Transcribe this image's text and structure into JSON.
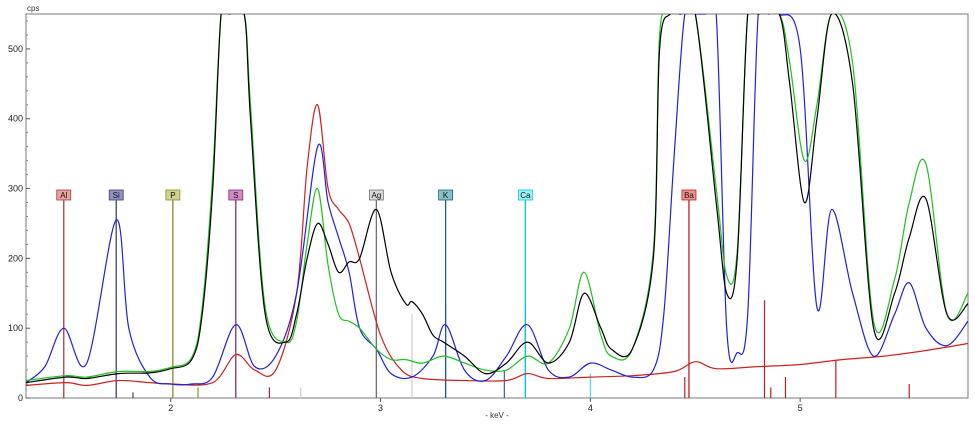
{
  "chart_data": {
    "type": "line",
    "xlabel": "- keV -",
    "ylabel": "cps",
    "xlim": [
      1.31,
      5.8
    ],
    "ylim": [
      0,
      550
    ],
    "x_ticks": [
      2,
      3,
      4,
      5
    ],
    "y_ticks": [
      0,
      100,
      200,
      300,
      400,
      500
    ],
    "grid": false,
    "legend": "none",
    "markers": [
      {
        "label": "Al",
        "x": 1.49,
        "color": "#a04040",
        "bg": "#e8a0a0"
      },
      {
        "label": "Si",
        "x": 1.74,
        "color": "#404070",
        "bg": "#9090c8"
      },
      {
        "label": "P",
        "x": 2.01,
        "color": "#8a8a30",
        "bg": "#d0d090"
      },
      {
        "label": "S",
        "x": 2.31,
        "color": "#803070",
        "bg": "#d08ac8"
      },
      {
        "label": "Ag",
        "x": 2.98,
        "color": "#707070",
        "bg": "#d8d8d8"
      },
      {
        "label": "K",
        "x": 3.31,
        "color": "#206080",
        "bg": "#88c0c8"
      },
      {
        "label": "Ca",
        "x": 3.69,
        "color": "#00c8d8",
        "bg": "#a0f0f8"
      },
      {
        "label": "Ba",
        "x": 4.47,
        "color": "#c02020",
        "bg": "#f09090"
      }
    ],
    "series": [
      {
        "color": "#000000",
        "x": [
          1.31,
          1.5,
          1.6,
          1.75,
          1.9,
          2.0,
          2.1,
          2.15,
          2.2,
          2.24,
          2.28,
          2.35,
          2.38,
          2.45,
          2.55,
          2.6,
          2.65,
          2.7,
          2.75,
          2.8,
          2.85,
          2.9,
          2.98,
          3.05,
          3.12,
          3.15,
          3.2,
          3.25,
          3.3,
          3.4,
          3.5,
          3.6,
          3.7,
          3.8,
          3.9,
          3.97,
          4.05,
          4.1,
          4.2,
          4.3,
          4.33,
          4.38,
          4.43,
          4.5,
          4.6,
          4.65,
          4.7,
          4.75,
          4.8,
          4.9,
          4.95,
          5.02,
          5.08,
          5.15,
          5.25,
          5.35,
          5.45,
          5.52,
          5.6,
          5.7,
          5.8
        ],
        "y": [
          22,
          30,
          28,
          35,
          36,
          42,
          55,
          120,
          300,
          550,
          550,
          550,
          400,
          120,
          80,
          120,
          200,
          250,
          220,
          180,
          195,
          200,
          270,
          180,
          135,
          138,
          120,
          90,
          80,
          60,
          35,
          50,
          80,
          50,
          80,
          150,
          100,
          70,
          70,
          200,
          500,
          550,
          550,
          550,
          280,
          150,
          200,
          550,
          550,
          550,
          450,
          280,
          400,
          550,
          450,
          100,
          150,
          230,
          285,
          120,
          135
        ]
      },
      {
        "color": "#20c020",
        "x": [
          1.31,
          1.5,
          1.6,
          1.75,
          1.9,
          2.0,
          2.1,
          2.15,
          2.2,
          2.24,
          2.28,
          2.35,
          2.38,
          2.45,
          2.55,
          2.6,
          2.65,
          2.7,
          2.75,
          2.8,
          2.85,
          2.9,
          2.98,
          3.05,
          3.12,
          3.2,
          3.3,
          3.4,
          3.5,
          3.6,
          3.7,
          3.8,
          3.9,
          3.97,
          4.05,
          4.1,
          4.2,
          4.3,
          4.33,
          4.38,
          4.43,
          4.5,
          4.6,
          4.65,
          4.7,
          4.75,
          4.8,
          4.9,
          4.95,
          5.02,
          5.08,
          5.15,
          5.25,
          5.35,
          5.45,
          5.52,
          5.6,
          5.7,
          5.8
        ],
        "y": [
          25,
          32,
          30,
          38,
          38,
          44,
          58,
          130,
          320,
          550,
          550,
          550,
          420,
          130,
          80,
          110,
          220,
          300,
          190,
          120,
          110,
          100,
          70,
          55,
          55,
          50,
          60,
          50,
          40,
          40,
          60,
          50,
          100,
          180,
          90,
          60,
          70,
          210,
          520,
          550,
          550,
          550,
          300,
          175,
          210,
          550,
          550,
          550,
          480,
          340,
          420,
          550,
          480,
          110,
          170,
          280,
          335,
          120,
          150
        ]
      },
      {
        "color": "#2020e0",
        "x": [
          1.31,
          1.4,
          1.49,
          1.6,
          1.74,
          1.8,
          1.9,
          2.0,
          2.1,
          2.2,
          2.31,
          2.4,
          2.5,
          2.6,
          2.7,
          2.75,
          2.8,
          2.85,
          2.9,
          2.98,
          3.05,
          3.15,
          3.25,
          3.31,
          3.4,
          3.5,
          3.6,
          3.7,
          3.8,
          3.9,
          4.0,
          4.1,
          4.2,
          4.3,
          4.35,
          4.4,
          4.45,
          4.5,
          4.55,
          4.6,
          4.65,
          4.7,
          4.75,
          4.8,
          4.85,
          4.9,
          5.0,
          5.08,
          5.15,
          5.25,
          5.35,
          5.45,
          5.52,
          5.6,
          5.7,
          5.8
        ],
        "y": [
          22,
          45,
          100,
          50,
          255,
          100,
          30,
          20,
          20,
          30,
          105,
          45,
          60,
          150,
          360,
          280,
          230,
          180,
          100,
          70,
          35,
          30,
          60,
          105,
          40,
          25,
          60,
          105,
          40,
          30,
          50,
          40,
          30,
          40,
          120,
          350,
          550,
          550,
          550,
          550,
          100,
          65,
          120,
          550,
          550,
          550,
          500,
          130,
          270,
          150,
          60,
          120,
          165,
          100,
          75,
          110
        ]
      },
      {
        "color": "#d02020",
        "x": [
          1.31,
          1.5,
          1.6,
          1.75,
          1.9,
          2.0,
          2.2,
          2.31,
          2.4,
          2.5,
          2.6,
          2.65,
          2.7,
          2.75,
          2.8,
          2.85,
          2.9,
          3.0,
          3.1,
          3.2,
          3.4,
          3.6,
          3.7,
          3.8,
          4.0,
          4.2,
          4.4,
          4.5,
          4.6,
          4.8,
          5.0,
          5.2,
          5.4,
          5.6,
          5.8
        ],
        "y": [
          18,
          22,
          18,
          25,
          22,
          20,
          22,
          62,
          40,
          40,
          150,
          330,
          420,
          300,
          270,
          250,
          200,
          90,
          40,
          28,
          25,
          25,
          35,
          28,
          30,
          32,
          38,
          52,
          42,
          45,
          48,
          55,
          60,
          68,
          78
        ]
      }
    ],
    "sticks": [
      {
        "x": 1.82,
        "y": 8,
        "color": "#404080"
      },
      {
        "x": 2.13,
        "y": 15,
        "color": "#909030"
      },
      {
        "x": 2.47,
        "y": 15,
        "color": "#a02060"
      },
      {
        "x": 2.62,
        "y": 15,
        "color": "#cccccc"
      },
      {
        "x": 2.98,
        "y": 150,
        "color": "#cccccc"
      },
      {
        "x": 3.15,
        "y": 120,
        "color": "#cccccc"
      },
      {
        "x": 3.31,
        "y": 135,
        "color": "#207080"
      },
      {
        "x": 3.59,
        "y": 40,
        "color": "#4060a0"
      },
      {
        "x": 3.69,
        "y": 135,
        "color": "#40e0f0"
      },
      {
        "x": 4.0,
        "y": 35,
        "color": "#40e0f0"
      },
      {
        "x": 4.45,
        "y": 30,
        "color": "#c02020"
      },
      {
        "x": 4.83,
        "y": 140,
        "color": "#c02020"
      },
      {
        "x": 4.86,
        "y": 15,
        "color": "#c02020"
      },
      {
        "x": 4.93,
        "y": 30,
        "color": "#c02020"
      },
      {
        "x": 5.17,
        "y": 55,
        "color": "#c02020"
      },
      {
        "x": 5.52,
        "y": 20,
        "color": "#c02020"
      }
    ]
  }
}
